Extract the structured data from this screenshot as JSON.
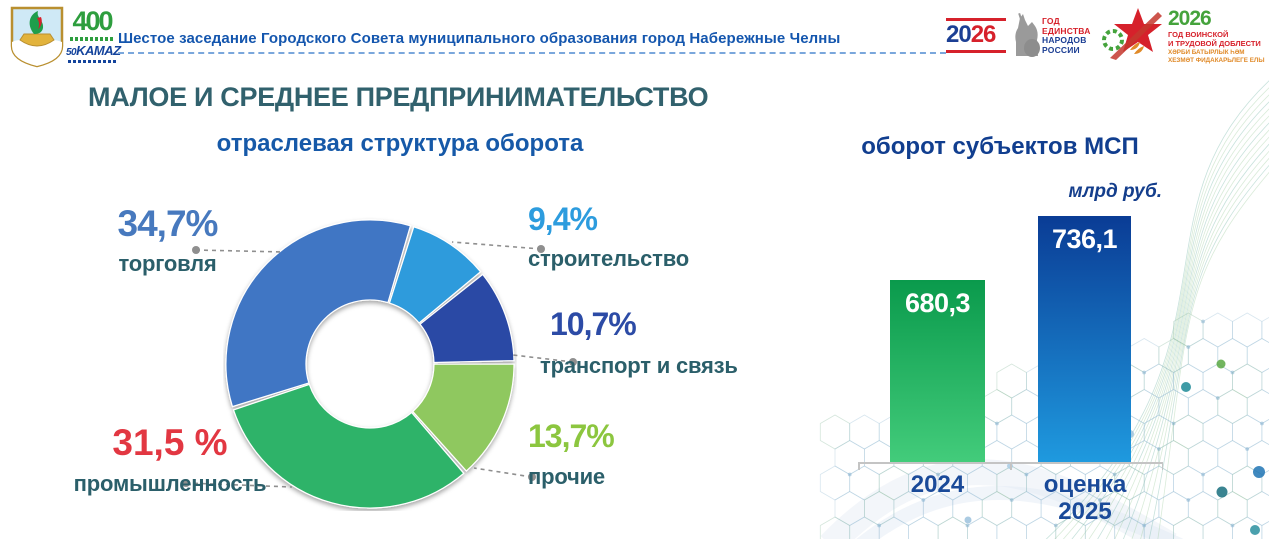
{
  "header": {
    "title": "Шестое заседание Городского Совета муниципального образования город Набережные Челны",
    "logos": {
      "coat_of_arms": "naberezhnye-chelny-emblem",
      "kamaz": {
        "anniversary": "400",
        "brand_prefix": "50",
        "brand": "KAMAZ"
      },
      "unity": {
        "year_left": "20",
        "year_right": "26",
        "lines": [
          "ГОД",
          "ЕДИНСТВА",
          "НАРОДОВ",
          "РОССИИ"
        ]
      },
      "valor": {
        "year": "2026",
        "line1": "ГОД ВОИНСКОЙ",
        "line2": "И ТРУДОВОЙ ДОБЛЕСТИ",
        "line3": "ХӘРБИ БАТЫРЛЫК ҺӘМ",
        "line4": "ХЕЗМӘТ ФИДАКАРЬЛЕГЕ ЕЛЫ"
      }
    }
  },
  "page_title": "МАЛОЕ И СРЕДНЕЕ ПРЕДПРИНИМАТЕЛЬСТВО",
  "chart_data": [
    {
      "type": "pie",
      "donut": true,
      "title": "отраслевая структура оборота",
      "title_color": "#1659A8",
      "start_angle_deg": 17,
      "segments": [
        {
          "label": "строительство",
          "value": 9.4,
          "display": "9,4%",
          "color": "#2E9BDC",
          "value_color": "#2D9CDE"
        },
        {
          "label": "транспорт и связь",
          "value": 10.7,
          "display": "10,7%",
          "color": "#2C4AA5",
          "value_color": "#2C4BA6"
        },
        {
          "label": "прочие",
          "value": 13.7,
          "display": "13,7%",
          "color": "#8FC85F",
          "value_color": "#8CC63F"
        },
        {
          "label": "промышленность",
          "value": 31.5,
          "display": "31,5 %",
          "color": "#2DB369",
          "value_color": "#E23742"
        },
        {
          "label": "торговля",
          "value": 34.7,
          "display": "34,7%",
          "color": "#4076C4",
          "value_color": "#4779BE"
        }
      ]
    },
    {
      "type": "bar",
      "title": "оборот субъектов МСП",
      "title_color": "#113E8F",
      "unit": "млрд руб.",
      "categories": [
        "2024",
        "оценка 2025"
      ],
      "values": [
        680.3,
        736.1
      ],
      "display_values": [
        "680,3",
        "736,1"
      ],
      "ylim": [
        520,
        760
      ],
      "grid": false,
      "legend": "none",
      "bar_colors_top": [
        "#0A9A4C",
        "#0A3C95"
      ],
      "bar_colors_bottom": [
        "#43CC7B",
        "#1F9ADF"
      ]
    }
  ]
}
